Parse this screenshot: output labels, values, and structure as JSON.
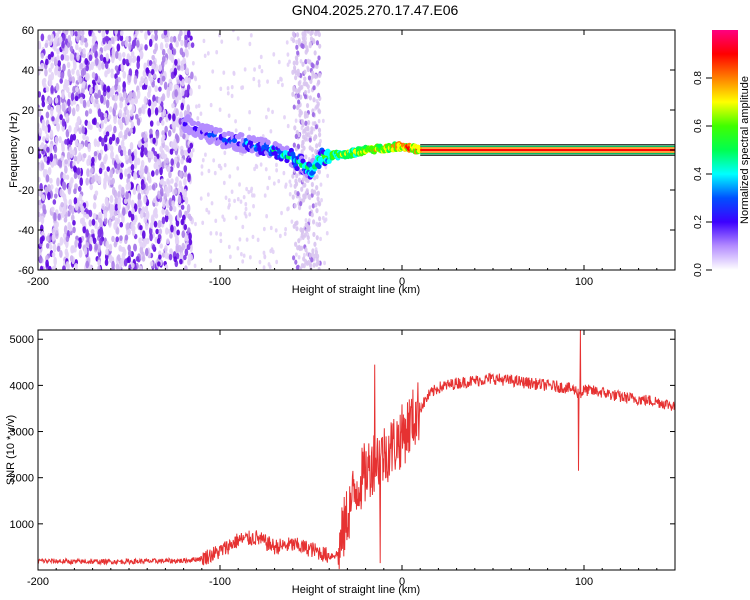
{
  "title": "GN04.2025.270.17.47.E06",
  "colors": {
    "snr_line": "#e63232",
    "spectrum_low": "#d8c4f0",
    "spectrum_mid": "#6a10e0",
    "axis": "#000000"
  },
  "chart_data": [
    {
      "type": "heatmap",
      "xlabel": "Height of straight line (km)",
      "ylabel": "Frequency (Hz)",
      "xlim": [
        -200,
        150
      ],
      "ylim": [
        -60,
        60
      ],
      "xticks": [
        -200,
        -100,
        0,
        100
      ],
      "xtick_labels": [
        "-200",
        "-100",
        "0",
        "100"
      ],
      "yticks": [
        -60,
        -40,
        -20,
        0,
        20,
        40,
        60
      ],
      "ytick_labels": [
        "-60",
        "-40",
        "-20",
        "0",
        "20",
        "40",
        "60"
      ],
      "signal_ridge": {
        "x": [
          -120,
          -110,
          -100,
          -90,
          -80,
          -70,
          -60,
          -50,
          -45,
          -40,
          -30,
          -20,
          -10,
          0,
          10,
          150
        ],
        "y": [
          14,
          9,
          6,
          4,
          2,
          0,
          -4,
          -10,
          -4,
          -3,
          -2,
          0,
          1,
          2,
          0,
          0
        ],
        "note": "Normalized amplitude rises from ~0.2 near -120 km to ~1.0 for heights above ~10 km"
      },
      "noise_region": {
        "x_from": -200,
        "x_to": -115,
        "secondary_band": [
          -60,
          -45
        ]
      },
      "colorbar": {
        "label": "Normalized spectral amplitude",
        "range": [
          0,
          1
        ],
        "ticks": [
          0.0,
          0.2,
          0.4,
          0.6,
          0.8
        ],
        "tick_labels": [
          "0.0",
          "0.2",
          "0.4",
          "0.6",
          "0.8"
        ],
        "stops": [
          "#ffffff",
          "#b48cff",
          "#3c00ff",
          "#0050ff",
          "#00ffff",
          "#00ff50",
          "#40ff00",
          "#ffff00",
          "#ff8000",
          "#ff0000",
          "#ff0080"
        ]
      }
    },
    {
      "type": "line",
      "xlabel": "Height of straight line (km)",
      "ylabel": "SNR (10 * v/v)",
      "xlim": [
        -200,
        150
      ],
      "ylim": [
        0,
        5200
      ],
      "xticks": [
        -200,
        -100,
        0,
        100
      ],
      "xtick_labels": [
        "-200",
        "-100",
        "0",
        "100"
      ],
      "yticks": [
        1000,
        2000,
        3000,
        4000,
        5000
      ],
      "ytick_labels": [
        "1000",
        "2000",
        "3000",
        "4000",
        "5000"
      ],
      "series": [
        {
          "name": "SNR",
          "x": [
            -200,
            -180,
            -160,
            -140,
            -120,
            -110,
            -100,
            -90,
            -80,
            -70,
            -60,
            -50,
            -40,
            -35,
            -30,
            -25,
            -20,
            -15,
            -10,
            -5,
            0,
            5,
            10,
            15,
            20,
            30,
            40,
            50,
            60,
            70,
            80,
            90,
            95,
            98,
            100,
            110,
            120,
            130,
            140,
            150
          ],
          "y": [
            200,
            180,
            180,
            190,
            200,
            250,
            400,
            650,
            700,
            500,
            550,
            450,
            300,
            350,
            1200,
            1800,
            2100,
            2400,
            2500,
            2700,
            2900,
            3200,
            3500,
            3800,
            3950,
            4050,
            4100,
            4150,
            4100,
            4050,
            4000,
            3950,
            3900,
            3800,
            3900,
            3850,
            3750,
            3700,
            3650,
            3550
          ]
        }
      ],
      "spikes": [
        {
          "x": -15,
          "y": 4450
        },
        {
          "x": -12,
          "y": 150
        },
        {
          "x": 98,
          "y": 5200
        },
        {
          "x": 97,
          "y": 2150
        }
      ]
    }
  ]
}
